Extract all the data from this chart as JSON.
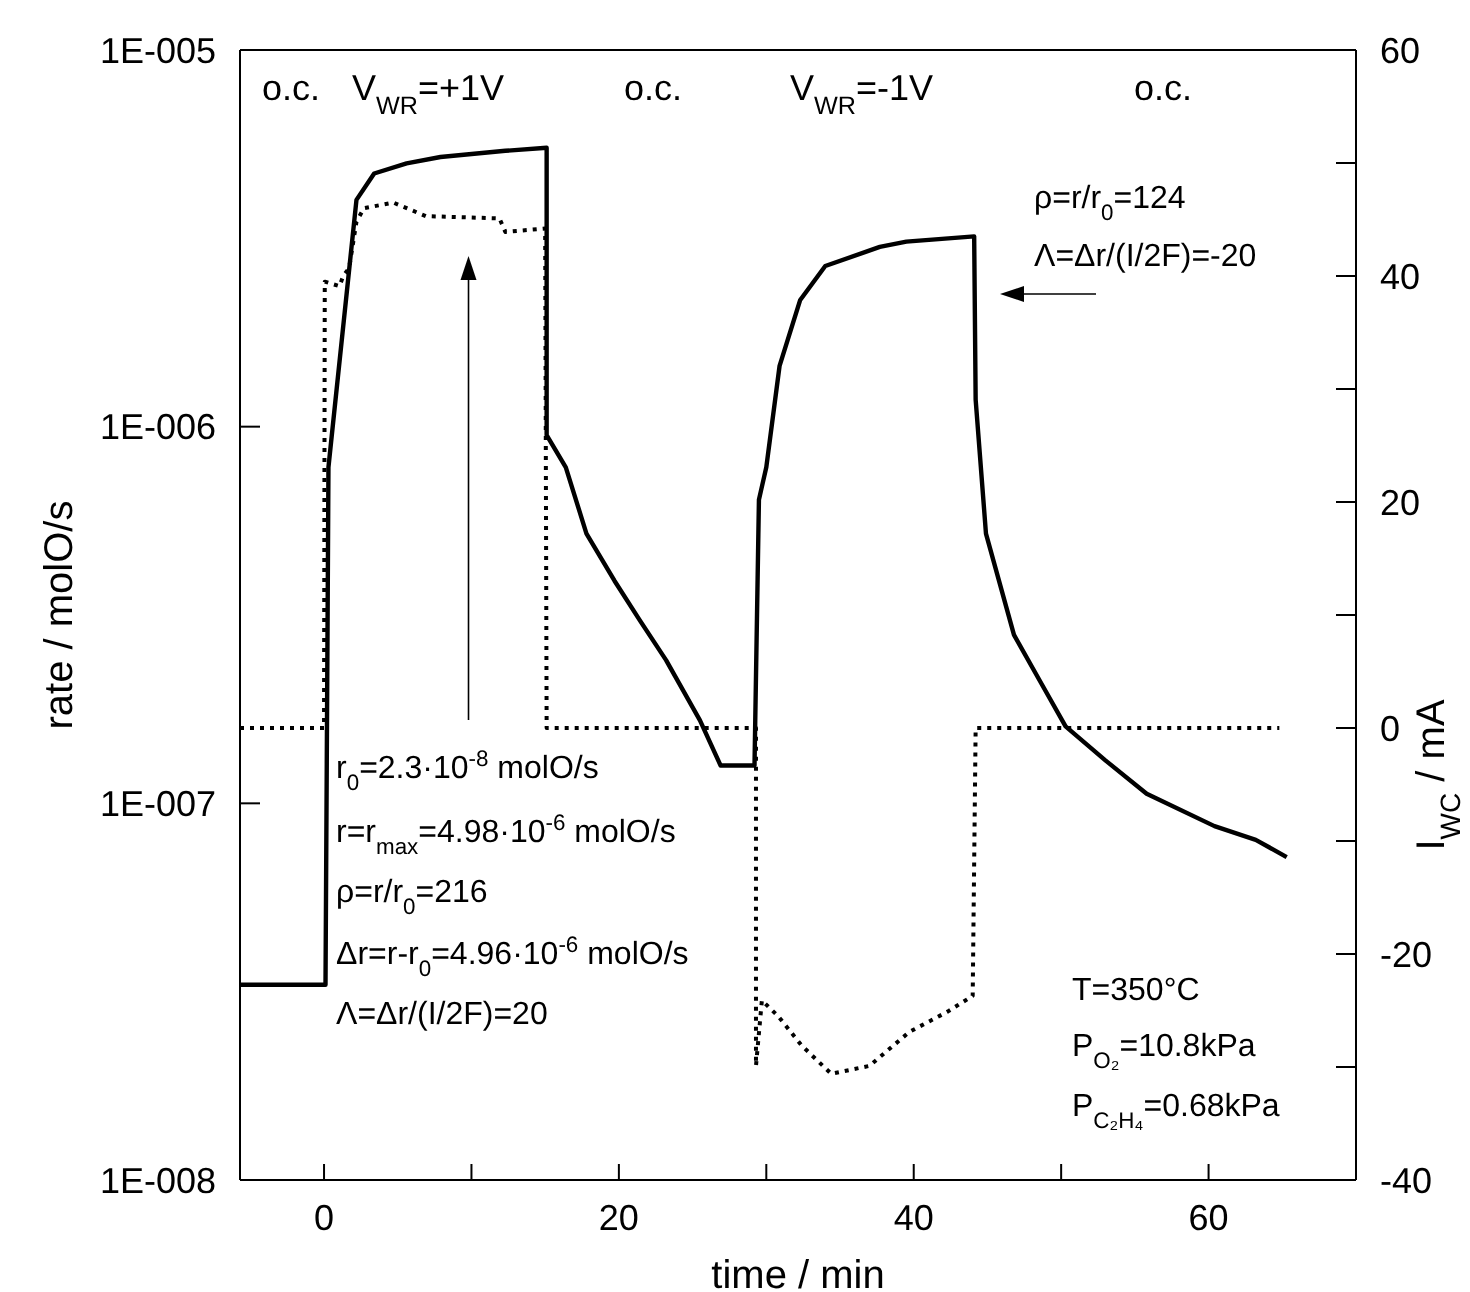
{
  "chart_data": {
    "type": "line",
    "xlabel": "time / min",
    "ylabel": "rate / molO/s",
    "y2label": "I$_{WC}$ / mA",
    "log": "y",
    "marker": "none",
    "xlim": [
      -5.7,
      70
    ],
    "xticks": [
      0,
      {
        "value": 10,
        "label": null
      },
      20,
      {
        "value": 30,
        "label": null
      },
      40,
      {
        "value": 50,
        "label": null
      },
      60
    ],
    "ylim": [
      1e-08,
      1e-05
    ],
    "yticks": [
      {
        "value": 1e-08,
        "label": "1E-008"
      },
      {
        "value": 1e-07,
        "label": "1E-007"
      },
      {
        "value": 1e-06,
        "label": "1E-006"
      },
      {
        "value": 1e-05,
        "label": "1E-005"
      }
    ],
    "y2lim": [
      -40,
      60
    ],
    "y2ticks": [
      -40,
      {
        "value": -30,
        "label": null
      },
      -20,
      {
        "value": -10,
        "label": null
      },
      0,
      {
        "value": 10,
        "label": null
      },
      20,
      {
        "value": 30,
        "label": null
      },
      40,
      {
        "value": 50,
        "label": null
      },
      60
    ],
    "series": [
      {
        "color": "#000000",
        "line_style": "solid",
        "x": [
          -5.7,
          0.1,
          0.3,
          2.2,
          3.4,
          5.6,
          7.9,
          12.3,
          15.1,
          15.1,
          16.4,
          17.8,
          19.7,
          21.4,
          23.2,
          25.5,
          26.9,
          29.2,
          29.5,
          30.0,
          30.9,
          32.3,
          34.0,
          37.7,
          39.5,
          44.1,
          44.2,
          44.9,
          46.8,
          48.6,
          50.3,
          53.0,
          55.8,
          60.4,
          63.2,
          65.3
        ],
        "values": [
          3.3e-08,
          3.3e-08,
          7.8e-07,
          4e-06,
          4.7e-06,
          5e-06,
          5.2e-06,
          5.4e-06,
          5.5e-06,
          9.5e-07,
          7.8e-07,
          5.2e-07,
          3.9e-07,
          3.07e-07,
          2.4e-07,
          1.66e-07,
          1.26e-07,
          1.26e-07,
          6.4e-07,
          7.8e-07,
          1.45e-06,
          2.17e-06,
          2.67e-06,
          3e-06,
          3.1e-06,
          3.2e-06,
          1.18e-06,
          5.2e-07,
          2.8e-07,
          2.1e-07,
          1.6e-07,
          1.3e-07,
          1.06e-07,
          8.7e-08,
          8e-08,
          7.2e-08
        ]
      },
      {
        "color": "#000000",
        "line_style": "dotted",
        "axis": "y2",
        "x": [
          -5.7,
          0,
          0.05,
          1.05,
          1.3,
          1.7,
          2.2,
          2.7,
          4.7,
          6.9,
          11.9,
          12.3,
          15.0,
          15.1,
          29.3,
          29.3,
          29.7,
          30.8,
          32.4,
          34.4,
          37.0,
          39.7,
          42.3,
          44.0,
          44.2,
          64.8
        ],
        "values": [
          0,
          0,
          39.5,
          39.1,
          40,
          40.7,
          44.8,
          46,
          46.5,
          45.3,
          45.1,
          43.9,
          44.2,
          0,
          0,
          -29.9,
          -24.1,
          -25.5,
          -28.1,
          -30.6,
          -29.9,
          -26.9,
          -25.1,
          -23.7,
          0,
          0
        ]
      }
    ],
    "annotations": [
      "o.c.",
      "V$_{WR}$=+1V",
      "o.c.",
      "V$_{WR}$=-1V",
      "o.c.",
      "ρ=r/r$_{0}$=124",
      "Λ=Δr/(I/2F)=-20",
      "r$_{0}$=2.3·10$^{-8}$ molO/s",
      "r=r$_{max}$=4.98·10$^{-6}$ molO/s",
      "ρ=r/r$_{0}$=216",
      "Δr=r-r$_{0}$=4.96·10$^{-6}$ molO/s",
      "Λ=Δr/(I/2F)=20",
      "T=350°C",
      "P$_{O₂}$=10.8kPa",
      "P$_{C₂H₄}$=0.68kPa"
    ]
  }
}
